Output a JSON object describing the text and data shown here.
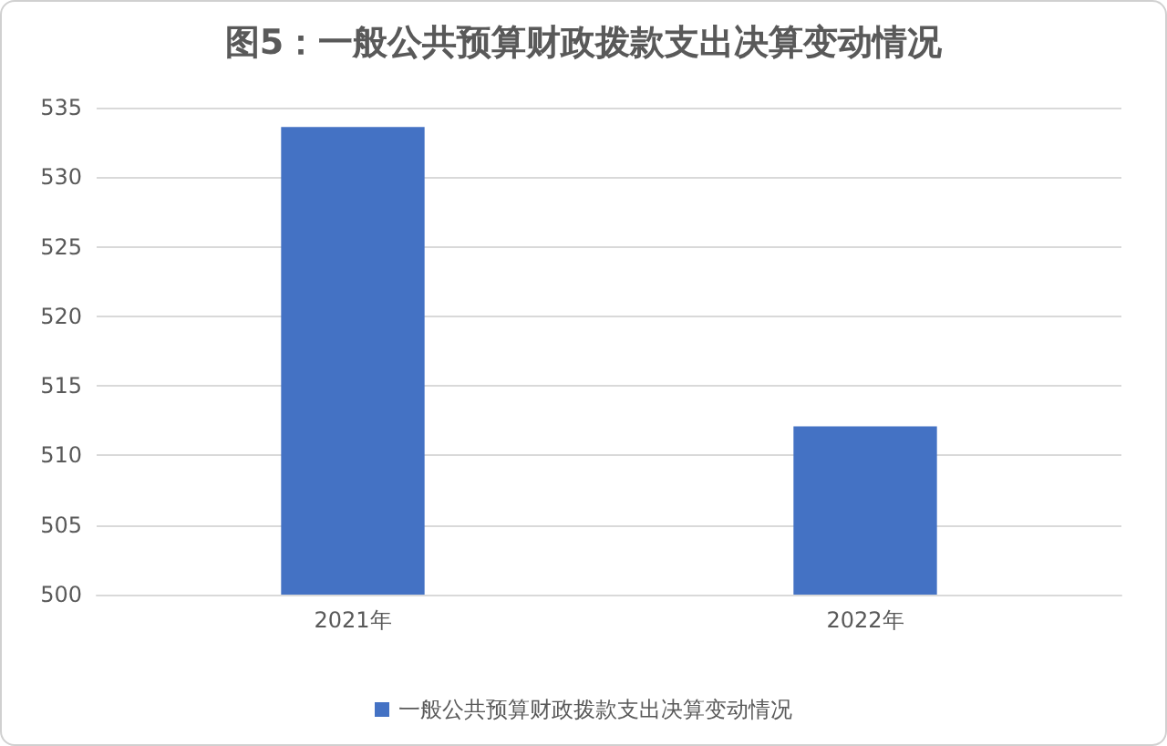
{
  "chart_data": {
    "type": "bar",
    "title": "图5：一般公共预算财政拨款支出决算变动情况",
    "categories": [
      "2021年",
      "2022年"
    ],
    "series": [
      {
        "name": "一般公共预算财政拨款支出决算变动情况",
        "color": "#4472c4",
        "values": [
          533.6,
          512.1
        ]
      }
    ],
    "ylim": [
      500,
      535
    ],
    "yticks": [
      500,
      505,
      510,
      515,
      520,
      525,
      530,
      535
    ],
    "grid": "y",
    "legend": "bottom"
  }
}
